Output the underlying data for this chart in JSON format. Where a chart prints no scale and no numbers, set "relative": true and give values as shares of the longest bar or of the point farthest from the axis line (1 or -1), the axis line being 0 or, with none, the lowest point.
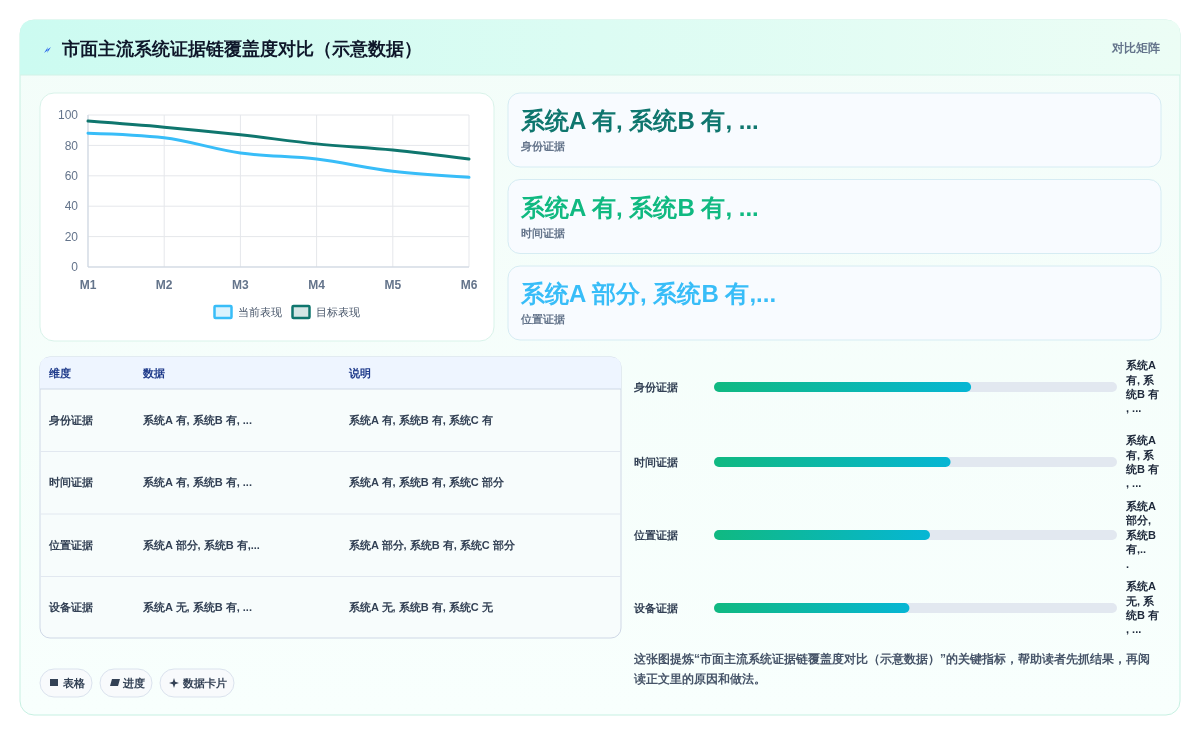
{
  "chart_data": [
    {
      "type": "other",
      "title": "市面主流系统证据链覆盖度对比（示意数据）",
      "subtitle": "对比矩阵"
    },
    {
      "type": "line",
      "categories": [
        "M1",
        "M2",
        "M3",
        "M4",
        "M5",
        "M6"
      ],
      "series": [
        {
          "name": "当前表现",
          "color": "#38bdf8",
          "values": [
            88,
            85,
            75,
            71,
            63,
            59
          ]
        },
        {
          "name": "目标表现",
          "color": "#0f766e",
          "values": [
            96,
            92,
            87,
            81,
            77,
            71
          ]
        }
      ],
      "ylim": [
        0,
        100
      ],
      "yticks": [
        0,
        20,
        40,
        60,
        80,
        100
      ],
      "grid": true,
      "legend": "bottom"
    },
    {
      "type": "other",
      "categories": [
        "身份证据",
        "时间证据",
        "位置证据"
      ],
      "value_labels": [
        "系统A 有, 系统B 有, ...",
        "系统A 有, 系统B 有, ...",
        "系统A 部分, 系统B 有,..."
      ]
    },
    {
      "type": "other",
      "categories": [
        "维度",
        "数据",
        "说明"
      ],
      "y_categories": [
        "身份证据",
        "时间证据",
        "位置证据",
        "设备证据"
      ],
      "cell_labels": [
        [
          "系统A 有, 系统B 有, ...",
          "系统A 有, 系统B 有, 系统C 有"
        ],
        [
          "系统A 有, 系统B 有, ...",
          "系统A 有, 系统B 有, 系统C 部分"
        ],
        [
          "系统A 部分, 系统B 有,...",
          "系统A 部分, 系统B 有, 系统C 部分"
        ],
        [
          "系统A 无, 系统B 有, ...",
          "系统A 无, 系统B 有, 系统C 无"
        ]
      ],
      "annotations": [
        "表格",
        "进度",
        "数据卡片"
      ]
    },
    {
      "type": "bar",
      "orientation": "horizontal",
      "relative": true,
      "categories": [
        "身份证据",
        "时间证据",
        "位置证据",
        "设备证据"
      ],
      "values": [
        1,
        0.92,
        0.84,
        0.76
      ],
      "color": "#10b981",
      "annotations": [
        "系统A 有, 系统B 有, ...",
        "系统A 有, 系统B 有, ...",
        "系统A 部分, 系统B 有,...",
        "系统A 无, 系统B 有, ...",
        "这张图提炼“市面主流系统证据链覆盖度对比（示意数据）”的关键指标，帮助读者先抓结果，再阅读正文里的原因和做法。"
      ]
    }
  ]
}
